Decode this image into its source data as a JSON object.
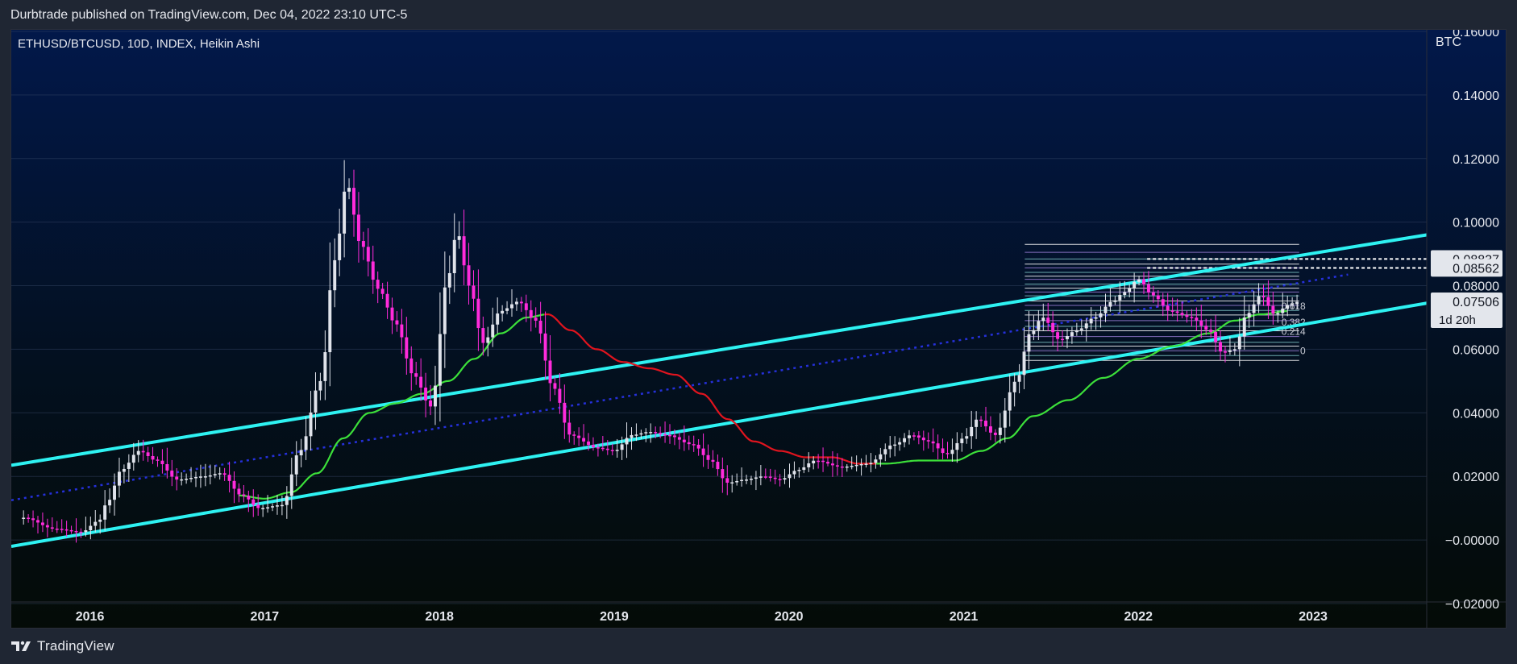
{
  "header": {
    "published_text": "Durbtrade published on TradingView.com, Dec 04, 2022 23:10 UTC-5"
  },
  "footer": {
    "brand_label": "TradingView",
    "brand_icon": "tradingview-logo-icon"
  },
  "colors": {
    "background_top": "#02184a",
    "background_bottom": "#040b07",
    "up_candle": "#e0e3eb",
    "down_candle": "#ff2bdb",
    "channel": "#2ef2f2",
    "channel_mid": "#2530d9",
    "ma_up": "#3ce03a",
    "ma_down": "#e0141e",
    "grid": "#3a4a6a",
    "fib_white": "#ffffff",
    "fib_violet": "#9b7fd8",
    "fib_teal": "#7fc7c7"
  },
  "chart_data": {
    "type": "candlestick",
    "title": "ETHUSD/BTCUSD, 10D, INDEX, Heikin Ashi",
    "price_unit": "BTC",
    "chart_style": "Heikin Ashi",
    "timeframe": "10D",
    "x_range": [
      2015.55,
      2023.65
    ],
    "y_range": [
      -0.0195,
      0.1605
    ],
    "y_ticks": [
      {
        "value": 0.16,
        "label": "0.16000"
      },
      {
        "value": 0.14,
        "label": "0.14000"
      },
      {
        "value": 0.12,
        "label": "0.12000"
      },
      {
        "value": 0.1,
        "label": "0.10000"
      },
      {
        "value": 0.08,
        "label": "0.08000"
      },
      {
        "value": 0.06,
        "label": "0.06000"
      },
      {
        "value": 0.04,
        "label": "0.04000"
      },
      {
        "value": 0.02,
        "label": "0.02000"
      },
      {
        "value": 0.0,
        "label": "−0.00000"
      },
      {
        "value": -0.02,
        "label": "−0.02000"
      }
    ],
    "x_ticks": [
      {
        "value": 2016,
        "label": "2016"
      },
      {
        "value": 2017,
        "label": "2017"
      },
      {
        "value": 2018,
        "label": "2018"
      },
      {
        "value": 2019,
        "label": "2019"
      },
      {
        "value": 2020,
        "label": "2020"
      },
      {
        "value": 2021,
        "label": "2021"
      },
      {
        "value": 2022,
        "label": "2022"
      },
      {
        "value": 2023,
        "label": "2023"
      }
    ],
    "grid": true,
    "price_markers": [
      {
        "value": 0.08837,
        "label": "0.08837",
        "style": "light"
      },
      {
        "value": 0.08562,
        "label": "0.08562",
        "style": "light"
      },
      {
        "value": 0.07506,
        "label": "0.07506",
        "sub_label": "1d 20h",
        "style": "current"
      }
    ],
    "close_path": [
      [
        2015.62,
        0.007
      ],
      [
        2015.8,
        0.0035
      ],
      [
        2015.95,
        0.0025
      ],
      [
        2016.05,
        0.006
      ],
      [
        2016.1,
        0.012
      ],
      [
        2016.18,
        0.022
      ],
      [
        2016.28,
        0.028
      ],
      [
        2016.38,
        0.025
      ],
      [
        2016.5,
        0.019
      ],
      [
        2016.65,
        0.02
      ],
      [
        2016.75,
        0.021
      ],
      [
        2016.87,
        0.014
      ],
      [
        2016.97,
        0.01
      ],
      [
        2017.1,
        0.011
      ],
      [
        2017.2,
        0.028
      ],
      [
        2017.32,
        0.05
      ],
      [
        2017.4,
        0.088
      ],
      [
        2017.47,
        0.112
      ],
      [
        2017.55,
        0.093
      ],
      [
        2017.65,
        0.079
      ],
      [
        2017.75,
        0.068
      ],
      [
        2017.85,
        0.052
      ],
      [
        2017.95,
        0.042
      ],
      [
        2018.05,
        0.083
      ],
      [
        2018.1,
        0.097
      ],
      [
        2018.17,
        0.08
      ],
      [
        2018.25,
        0.062
      ],
      [
        2018.35,
        0.072
      ],
      [
        2018.45,
        0.075
      ],
      [
        2018.55,
        0.069
      ],
      [
        2018.65,
        0.048
      ],
      [
        2018.75,
        0.033
      ],
      [
        2018.9,
        0.029
      ],
      [
        2019.0,
        0.028
      ],
      [
        2019.1,
        0.033
      ],
      [
        2019.2,
        0.034
      ],
      [
        2019.3,
        0.033
      ],
      [
        2019.45,
        0.03
      ],
      [
        2019.55,
        0.025
      ],
      [
        2019.65,
        0.018
      ],
      [
        2019.75,
        0.019
      ],
      [
        2019.85,
        0.02
      ],
      [
        2019.95,
        0.019
      ],
      [
        2020.05,
        0.022
      ],
      [
        2020.15,
        0.025
      ],
      [
        2020.3,
        0.023
      ],
      [
        2020.45,
        0.024
      ],
      [
        2020.6,
        0.03
      ],
      [
        2020.7,
        0.033
      ],
      [
        2020.8,
        0.031
      ],
      [
        2020.9,
        0.027
      ],
      [
        2021.0,
        0.032
      ],
      [
        2021.08,
        0.038
      ],
      [
        2021.18,
        0.033
      ],
      [
        2021.3,
        0.05
      ],
      [
        2021.38,
        0.065
      ],
      [
        2021.45,
        0.07
      ],
      [
        2021.55,
        0.063
      ],
      [
        2021.65,
        0.066
      ],
      [
        2021.75,
        0.07
      ],
      [
        2021.85,
        0.075
      ],
      [
        2021.92,
        0.078
      ],
      [
        2022.0,
        0.082
      ],
      [
        2022.08,
        0.077
      ],
      [
        2022.18,
        0.072
      ],
      [
        2022.3,
        0.07
      ],
      [
        2022.4,
        0.066
      ],
      [
        2022.48,
        0.059
      ],
      [
        2022.55,
        0.06
      ],
      [
        2022.62,
        0.071
      ],
      [
        2022.7,
        0.077
      ],
      [
        2022.78,
        0.071
      ],
      [
        2022.86,
        0.074
      ],
      [
        2022.92,
        0.075
      ]
    ],
    "ma_path": [
      [
        2016.85,
        0.014
      ],
      [
        2017.0,
        0.013
      ],
      [
        2017.15,
        0.015
      ],
      [
        2017.3,
        0.021
      ],
      [
        2017.45,
        0.032
      ],
      [
        2017.6,
        0.04
      ],
      [
        2017.75,
        0.043
      ],
      [
        2017.9,
        0.046
      ],
      [
        2018.05,
        0.05
      ],
      [
        2018.2,
        0.057
      ],
      [
        2018.35,
        0.065
      ],
      [
        2018.5,
        0.07
      ],
      [
        2018.62,
        0.071
      ],
      [
        2018.75,
        0.066
      ],
      [
        2018.9,
        0.06
      ],
      [
        2019.05,
        0.056
      ],
      [
        2019.2,
        0.054
      ],
      [
        2019.35,
        0.052
      ],
      [
        2019.5,
        0.046
      ],
      [
        2019.65,
        0.038
      ],
      [
        2019.8,
        0.031
      ],
      [
        2019.95,
        0.028
      ],
      [
        2020.1,
        0.026
      ],
      [
        2020.25,
        0.026
      ],
      [
        2020.4,
        0.024
      ],
      [
        2020.55,
        0.024
      ],
      [
        2020.75,
        0.025
      ],
      [
        2020.95,
        0.025
      ],
      [
        2021.1,
        0.028
      ],
      [
        2021.25,
        0.032
      ],
      [
        2021.4,
        0.039
      ],
      [
        2021.6,
        0.044
      ],
      [
        2021.8,
        0.051
      ],
      [
        2022.0,
        0.057
      ],
      [
        2022.2,
        0.061
      ],
      [
        2022.4,
        0.065
      ],
      [
        2022.55,
        0.069
      ],
      [
        2022.7,
        0.071
      ],
      [
        2022.85,
        0.072
      ]
    ],
    "ma_segments": [
      {
        "from": 2016.85,
        "to": 2018.6,
        "trend": "up"
      },
      {
        "from": 2018.6,
        "to": 2020.5,
        "trend": "down"
      },
      {
        "from": 2020.5,
        "to": 2022.85,
        "trend": "up"
      }
    ],
    "channel": {
      "upper": [
        [
          2015.55,
          0.0235
        ],
        [
          2023.65,
          0.096
        ]
      ],
      "lower": [
        [
          2015.55,
          -0.002
        ],
        [
          2023.65,
          0.0745
        ]
      ],
      "middle": [
        [
          2015.55,
          0.0125
        ],
        [
          2023.2,
          0.0835
        ]
      ]
    },
    "fib_levels": {
      "x_start": 2021.35,
      "x_end": 2022.92,
      "values": [
        0.093,
        0.0905,
        0.0884,
        0.0868,
        0.0856,
        0.0842,
        0.083,
        0.082,
        0.0805,
        0.0792,
        0.078,
        0.0768,
        0.0752,
        0.0738,
        0.0722,
        0.0708,
        0.069,
        0.0672,
        0.0658,
        0.064,
        0.0622,
        0.061,
        0.0595,
        0.058,
        0.0565
      ]
    },
    "fib_labels": [
      {
        "value": 0.0735,
        "label": "0.618"
      },
      {
        "value": 0.0685,
        "label": "0.382"
      },
      {
        "value": 0.0655,
        "label": "0.214"
      },
      {
        "value": 0.0595,
        "label": "0"
      }
    ]
  }
}
